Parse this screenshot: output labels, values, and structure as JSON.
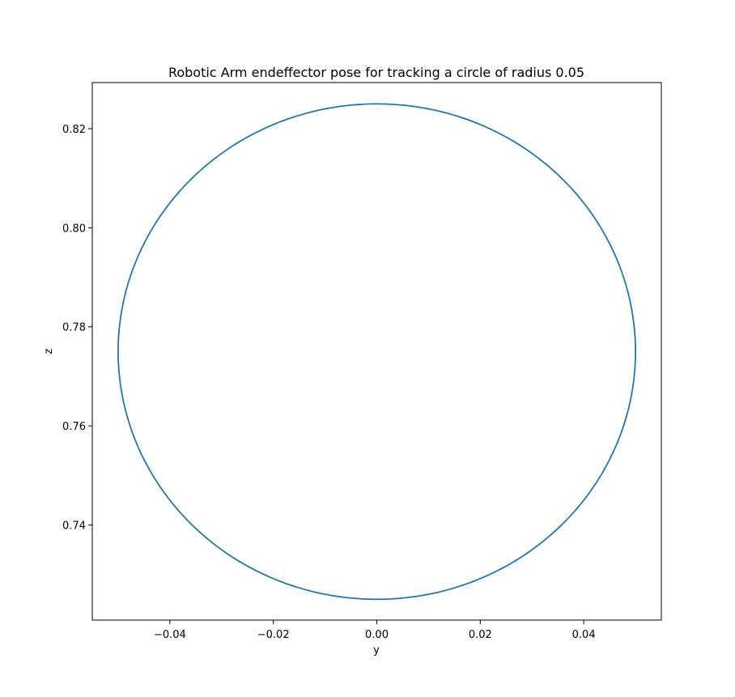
{
  "chart_data": {
    "type": "line",
    "title": "Robotic Arm endeffector pose for tracking a circle of radius 0.05",
    "xlabel": "y",
    "ylabel": "z",
    "xlim": [
      -0.055,
      0.055
    ],
    "ylim": [
      0.7208,
      0.8293
    ],
    "x_ticks": [
      -0.04,
      -0.02,
      0.0,
      0.02,
      0.04
    ],
    "x_tick_labels": [
      "−0.04",
      "−0.02",
      "0.00",
      "0.02",
      "0.04"
    ],
    "y_ticks": [
      0.74,
      0.76,
      0.78,
      0.8,
      0.82
    ],
    "y_tick_labels": [
      "0.74",
      "0.76",
      "0.78",
      "0.80",
      "0.82"
    ],
    "grid": false,
    "line_color": "#1f77b4",
    "circle": {
      "center": [
        0.0,
        0.775
      ],
      "radius": 0.05
    },
    "series": [
      {
        "x": [
          0.0,
          0.0129,
          0.025,
          0.0354,
          0.0433,
          0.0483,
          0.05,
          0.0483,
          0.0433,
          0.0354,
          0.025,
          0.0129,
          0.0,
          -0.0129,
          -0.025,
          -0.0354,
          -0.0433,
          -0.0483,
          -0.05,
          -0.0483,
          -0.0433,
          -0.0354,
          -0.025,
          -0.0129,
          0.0
        ],
        "y": [
          0.825,
          0.8233,
          0.8183,
          0.8104,
          0.8,
          0.7879,
          0.775,
          0.7621,
          0.75,
          0.7396,
          0.7317,
          0.7267,
          0.725,
          0.7267,
          0.7317,
          0.7396,
          0.75,
          0.7621,
          0.775,
          0.7879,
          0.8,
          0.8104,
          0.8183,
          0.8233,
          0.825
        ]
      }
    ]
  }
}
